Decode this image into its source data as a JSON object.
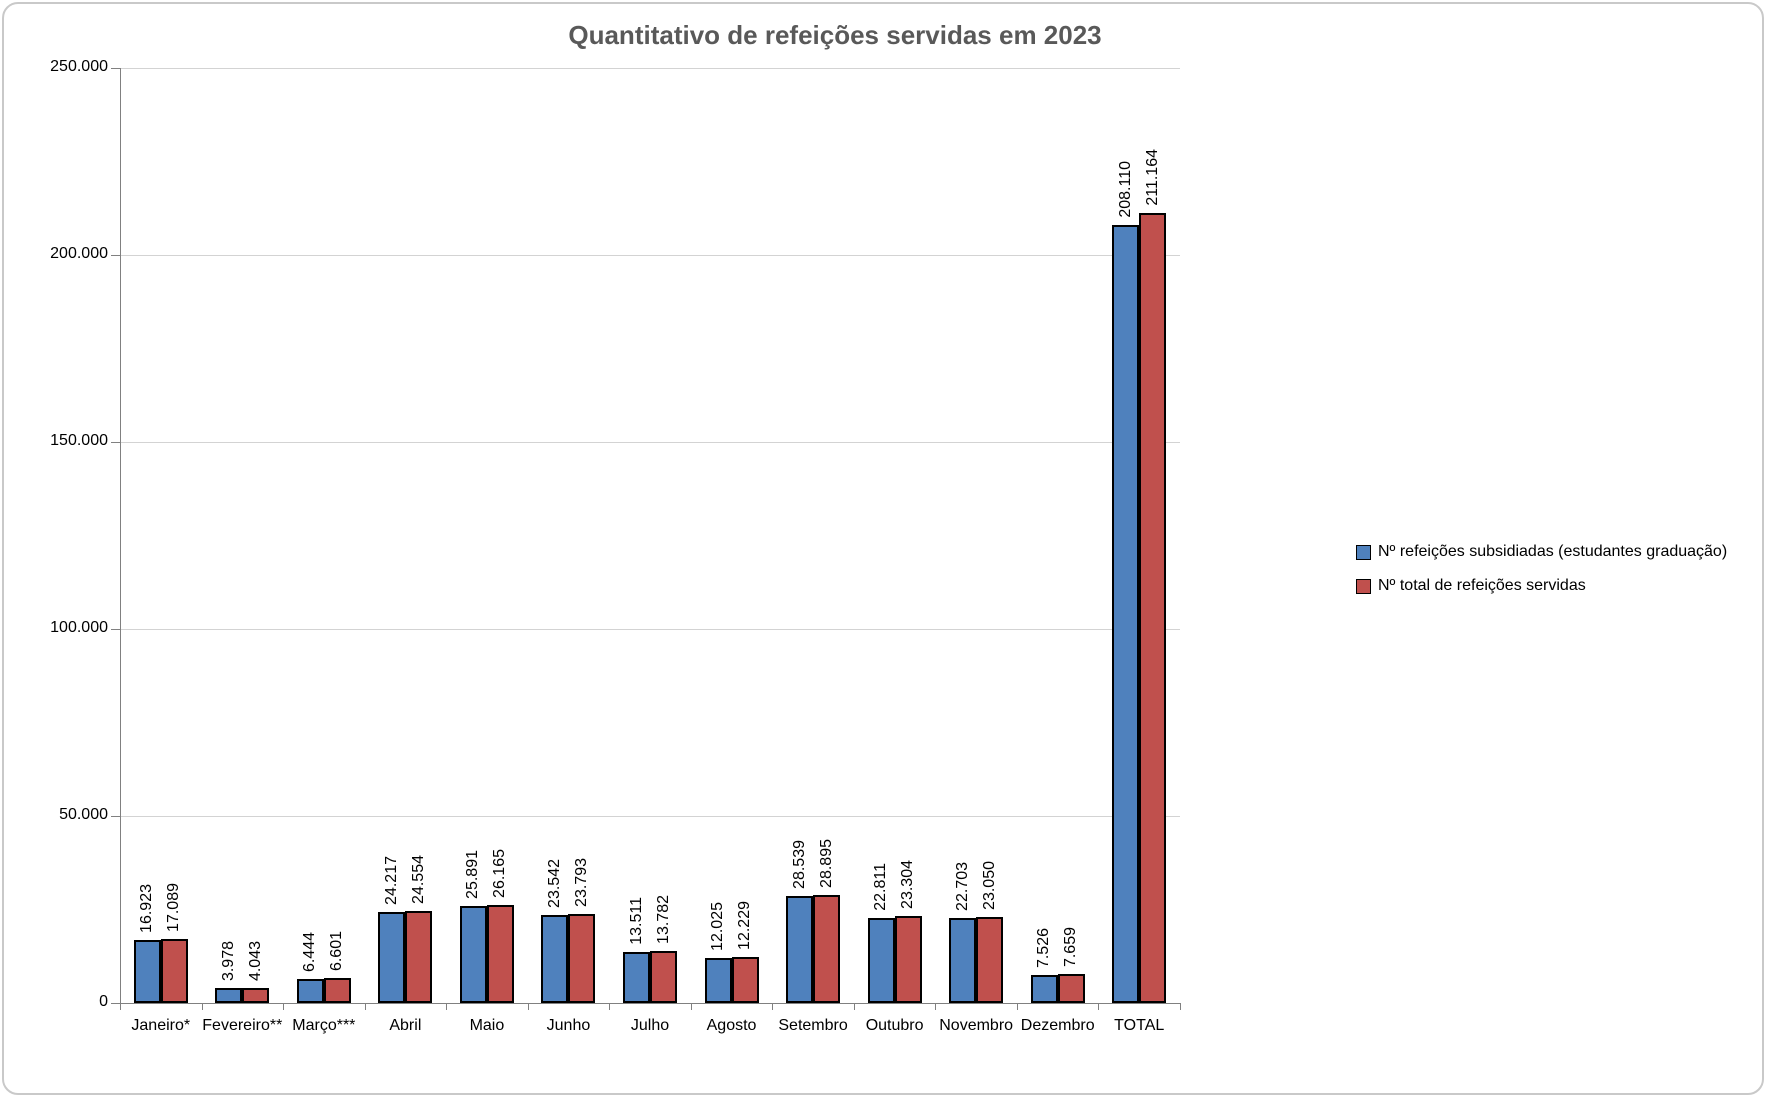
{
  "chart_data": {
    "type": "bar",
    "title": "Quantitativo de refeições servidas em 2023",
    "categories": [
      "Janeiro*",
      "Fevereiro**",
      "Março***",
      "Abril",
      "Maio",
      "Junho",
      "Julho",
      "Agosto",
      "Setembro",
      "Outubro",
      "Novembro",
      "Dezembro",
      "TOTAL"
    ],
    "series": [
      {
        "name": "Nº refeições subsidiadas (estudantes graduação)",
        "color": "#4F81BD",
        "values": [
          16923,
          3978,
          6444,
          24217,
          25891,
          23542,
          13511,
          12025,
          28539,
          22811,
          22703,
          7526,
          208110
        ],
        "labels": [
          "16.923",
          "3.978",
          "6.444",
          "24.217",
          "25.891",
          "23.542",
          "13.511",
          "12.025",
          "28.539",
          "22.811",
          "22.703",
          "7.526",
          "208.110"
        ]
      },
      {
        "name": "Nº total de refeições servidas",
        "color": "#C0504D",
        "values": [
          17089,
          4043,
          6601,
          24554,
          26165,
          23793,
          13782,
          12229,
          28895,
          23304,
          23050,
          7659,
          211164
        ],
        "labels": [
          "17.089",
          "4.043",
          "6.601",
          "24.554",
          "26.165",
          "23.793",
          "13.782",
          "12.229",
          "28.895",
          "23.304",
          "23.050",
          "7.659",
          "211.164"
        ]
      }
    ],
    "ylim": [
      0,
      250000
    ],
    "y_tick_step": 50000,
    "y_tick_labels": [
      "0",
      "50.000",
      "100.000",
      "150.000",
      "200.000",
      "250.000"
    ],
    "grid": true,
    "legend_position": "right",
    "data_label_style": "rotated-90-above-bar",
    "bar_border_color": "#000000",
    "axis_color": "#808080",
    "gridline_color": "#D3D3D3",
    "title_color": "#595959",
    "frame_border_color": "#C9C9C9"
  }
}
